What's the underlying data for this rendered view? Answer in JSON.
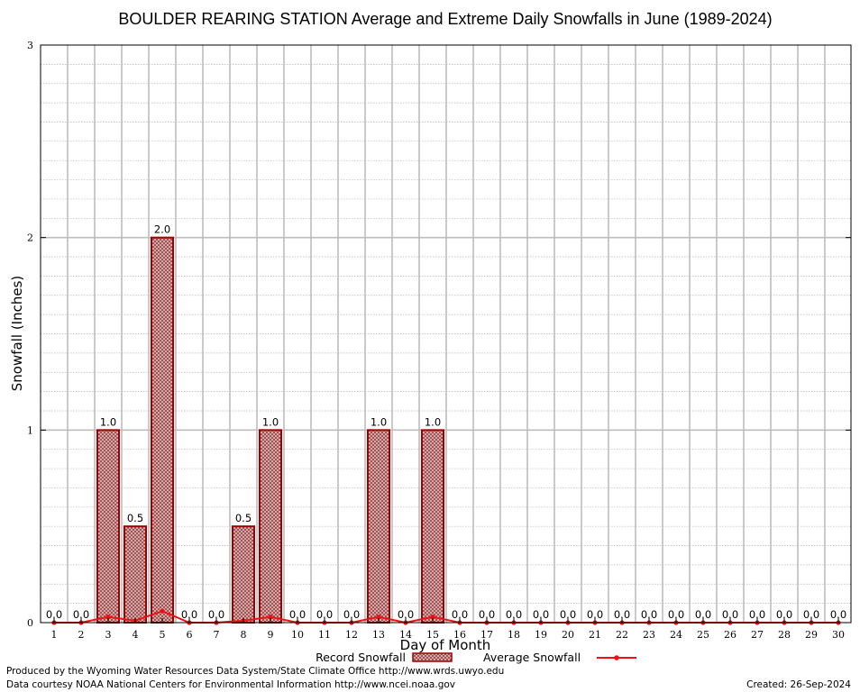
{
  "chart_data": {
    "type": "bar",
    "title": "BOULDER REARING STATION Average and Extreme Daily Snowfalls in June (1989-2024)",
    "xlabel": "Day of Month",
    "ylabel": "Snowfall (Inches)",
    "ylim": [
      0,
      3
    ],
    "yticks": [
      "0",
      "1",
      "2",
      "3"
    ],
    "grid": true,
    "categories": [
      "1",
      "2",
      "3",
      "4",
      "5",
      "6",
      "7",
      "8",
      "9",
      "10",
      "11",
      "12",
      "13",
      "14",
      "15",
      "16",
      "17",
      "18",
      "19",
      "20",
      "21",
      "22",
      "23",
      "24",
      "25",
      "26",
      "27",
      "28",
      "29",
      "30"
    ],
    "series": [
      {
        "name": "Record Snowfall",
        "kind": "bar",
        "color": "#a00000",
        "values": [
          0,
          0,
          1.0,
          0.5,
          2.0,
          0,
          0,
          0.5,
          1.0,
          0,
          0,
          0,
          1.0,
          0,
          1.0,
          0,
          0,
          0,
          0,
          0,
          0,
          0,
          0,
          0,
          0,
          0,
          0,
          0,
          0,
          0
        ],
        "labels": [
          "0.0",
          "0.0",
          "1.0",
          "0.5",
          "2.0",
          "0.0",
          "0.0",
          "0.5",
          "1.0",
          "0.0",
          "0.0",
          "0.0",
          "1.0",
          "0.0",
          "1.0",
          "0.0",
          "0.0",
          "0.0",
          "0.0",
          "0.0",
          "0.0",
          "0.0",
          "0.0",
          "0.0",
          "0.0",
          "0.0",
          "0.0",
          "0.0",
          "0.0",
          "0.0"
        ]
      },
      {
        "name": "Average Snowfall",
        "kind": "line",
        "color": "#ee1111",
        "values": [
          0,
          0,
          0.03,
          0.01,
          0.06,
          0,
          0,
          0.01,
          0.03,
          0,
          0,
          0,
          0.03,
          0,
          0.03,
          0,
          0,
          0,
          0,
          0,
          0,
          0,
          0,
          0,
          0,
          0,
          0,
          0,
          0,
          0
        ]
      }
    ],
    "legend_placement": "bottom-center"
  },
  "footer": {
    "produced_by": "Produced by the Wyoming Water Resources Data System/State Climate Office http://www.wrds.uwyo.edu",
    "courtesy": "Data courtesy NOAA National Centers for Environmental Information http://www.ncei.noaa.gov",
    "created": "Created:  26-Sep-2024"
  }
}
